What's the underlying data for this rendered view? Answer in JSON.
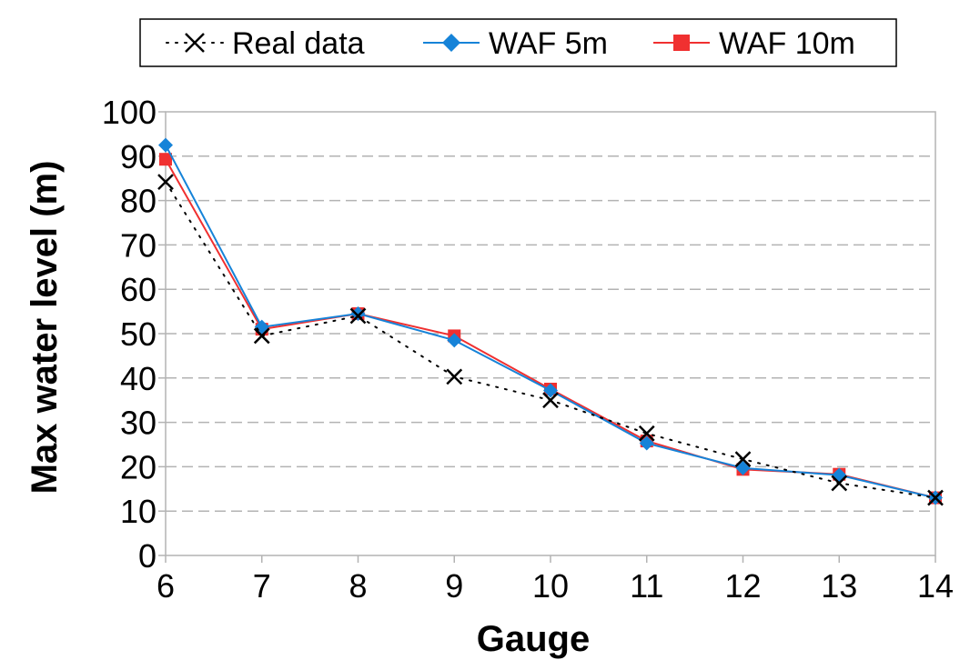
{
  "chart_data": {
    "type": "line",
    "title": "",
    "xlabel": "Gauge",
    "ylabel": "Max water level (m)",
    "categories": [
      "6",
      "7",
      "8",
      "9",
      "10",
      "11",
      "12",
      "13",
      "14"
    ],
    "x": [
      6,
      7,
      8,
      9,
      10,
      11,
      12,
      13,
      14
    ],
    "xlim": [
      6,
      14
    ],
    "ylim": [
      0,
      100
    ],
    "yticks": [
      0,
      10,
      20,
      30,
      40,
      50,
      60,
      70,
      80,
      90,
      100
    ],
    "grid": "horizontal dashed",
    "legend_position": "top",
    "series": [
      {
        "name": "Real data",
        "values": [
          84.2,
          49.5,
          54.0,
          40.3,
          35.0,
          27.5,
          21.7,
          16.3,
          13.0
        ],
        "color": "#000000",
        "marker": "x",
        "line_style": "dotted"
      },
      {
        "name": "WAF 5m",
        "values": [
          92.5,
          51.5,
          54.5,
          48.5,
          37.2,
          25.3,
          19.7,
          18.1,
          13.0
        ],
        "color": "#1683d8",
        "marker": "diamond",
        "line_style": "solid"
      },
      {
        "name": "WAF 10m",
        "values": [
          89.3,
          51.0,
          54.5,
          49.5,
          37.5,
          25.8,
          19.4,
          18.3,
          13.0
        ],
        "color": "#f03030",
        "marker": "square",
        "line_style": "solid"
      }
    ]
  }
}
